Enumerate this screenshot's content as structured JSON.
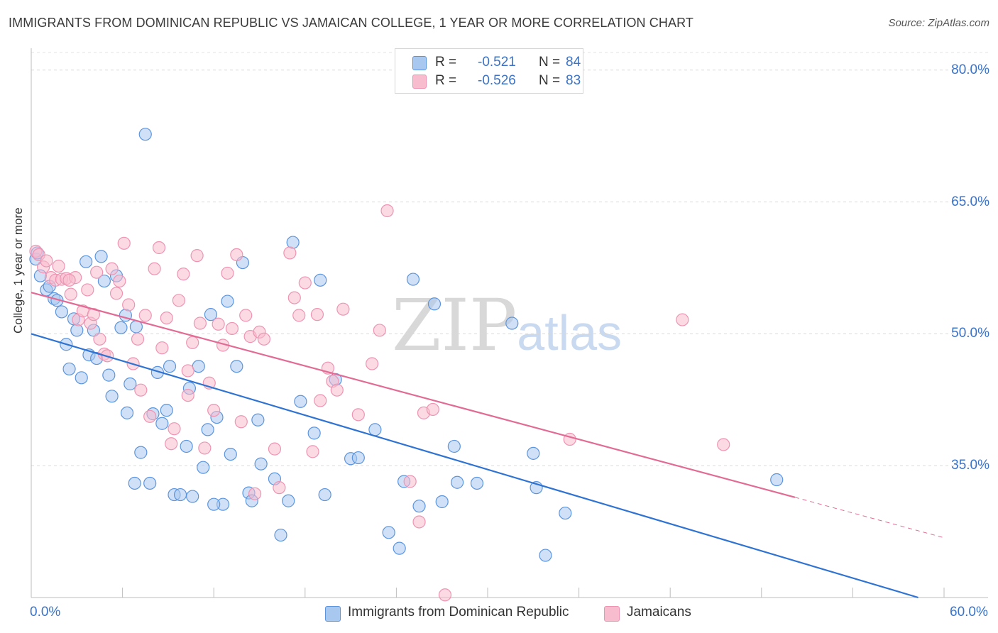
{
  "title": "IMMIGRANTS FROM DOMINICAN REPUBLIC VS JAMAICAN COLLEGE, 1 YEAR OR MORE CORRELATION CHART",
  "source": "Source: ZipAtlas.com",
  "watermark": {
    "zip": "ZIP",
    "atlas": "atlas"
  },
  "stats_legend": {
    "rows": [
      {
        "r_label": "R =",
        "r_value": "-0.521",
        "n_label": "N =",
        "n_value": "84",
        "color": "#a9c8f0"
      },
      {
        "r_label": "R =",
        "r_value": "-0.526",
        "n_label": "N =",
        "n_value": "83",
        "color": "#f7bccd"
      }
    ]
  },
  "bottom_legend": {
    "items": [
      {
        "label": "Immigrants from Dominican Republic",
        "color": "#a9c8f0"
      },
      {
        "label": "Jamaicans",
        "color": "#f7bccd"
      }
    ]
  },
  "chart_data": {
    "type": "scatter",
    "title": "IMMIGRANTS FROM DOMINICAN REPUBLIC VS JAMAICAN COLLEGE, 1 YEAR OR MORE CORRELATION CHART",
    "xlabel": "",
    "ylabel": "College, 1 year or more",
    "xlim": [
      0,
      60
    ],
    "ylim": [
      20,
      82
    ],
    "x_tick_labels": [
      "0.0%",
      "60.0%"
    ],
    "y_ticks": [
      35,
      50,
      65,
      80
    ],
    "y_tick_labels": [
      "35.0%",
      "50.0%",
      "65.0%",
      "80.0%"
    ],
    "grid": "horizontal dashed",
    "legend_placement": "bottom",
    "series": [
      {
        "name": "Immigrants from Dominican Republic",
        "color": "#5b95de",
        "fill": "#a9c8f0",
        "trend": {
          "x": [
            0,
            58.3
          ],
          "y": [
            50.0,
            20.0
          ],
          "color": "#2f73d2"
        },
        "points": [
          [
            0.3,
            58.5
          ],
          [
            0.4,
            59.2
          ],
          [
            0.6,
            56.6
          ],
          [
            1.0,
            55.0
          ],
          [
            1.2,
            55.4
          ],
          [
            1.5,
            54.0
          ],
          [
            1.7,
            53.8
          ],
          [
            2.0,
            52.5
          ],
          [
            2.3,
            48.8
          ],
          [
            2.5,
            46.0
          ],
          [
            2.8,
            51.7
          ],
          [
            3.0,
            50.4
          ],
          [
            3.3,
            45.0
          ],
          [
            3.6,
            58.2
          ],
          [
            3.8,
            47.6
          ],
          [
            4.1,
            50.4
          ],
          [
            4.3,
            47.2
          ],
          [
            4.6,
            58.8
          ],
          [
            4.8,
            56.0
          ],
          [
            5.1,
            45.3
          ],
          [
            5.3,
            42.9
          ],
          [
            5.6,
            56.6
          ],
          [
            5.9,
            50.7
          ],
          [
            6.2,
            52.1
          ],
          [
            6.3,
            41.0
          ],
          [
            6.5,
            44.3
          ],
          [
            6.9,
            50.8
          ],
          [
            7.2,
            36.5
          ],
          [
            7.5,
            72.7
          ],
          [
            7.8,
            33.0
          ],
          [
            8.0,
            40.9
          ],
          [
            8.3,
            45.6
          ],
          [
            8.6,
            39.8
          ],
          [
            8.9,
            41.3
          ],
          [
            9.1,
            46.3
          ],
          [
            9.4,
            31.7
          ],
          [
            9.8,
            31.7
          ],
          [
            10.2,
            37.2
          ],
          [
            10.4,
            43.8
          ],
          [
            10.6,
            31.5
          ],
          [
            11.0,
            46.3
          ],
          [
            11.3,
            34.8
          ],
          [
            11.6,
            39.1
          ],
          [
            11.8,
            52.2
          ],
          [
            12.2,
            40.5
          ],
          [
            12.6,
            30.6
          ],
          [
            12.9,
            53.7
          ],
          [
            13.1,
            36.3
          ],
          [
            13.5,
            46.3
          ],
          [
            13.9,
            58.1
          ],
          [
            14.3,
            31.9
          ],
          [
            14.5,
            31.0
          ],
          [
            14.9,
            40.2
          ],
          [
            15.1,
            35.2
          ],
          [
            16.0,
            33.5
          ],
          [
            16.4,
            27.1
          ],
          [
            16.9,
            31.0
          ],
          [
            17.2,
            60.4
          ],
          [
            17.7,
            42.3
          ],
          [
            18.6,
            38.7
          ],
          [
            19.0,
            56.1
          ],
          [
            19.3,
            31.7
          ],
          [
            20.0,
            44.8
          ],
          [
            21.0,
            35.8
          ],
          [
            21.5,
            35.9
          ],
          [
            22.6,
            39.1
          ],
          [
            23.5,
            27.4
          ],
          [
            24.2,
            25.6
          ],
          [
            24.5,
            33.2
          ],
          [
            25.1,
            56.2
          ],
          [
            25.5,
            30.4
          ],
          [
            26.5,
            53.4
          ],
          [
            27.0,
            30.9
          ],
          [
            27.8,
            37.2
          ],
          [
            28.0,
            33.1
          ],
          [
            29.3,
            33.0
          ],
          [
            31.6,
            51.2
          ],
          [
            33.0,
            36.4
          ],
          [
            33.2,
            32.5
          ],
          [
            33.8,
            24.8
          ],
          [
            35.1,
            29.6
          ],
          [
            49.0,
            33.4
          ],
          [
            6.8,
            33.0
          ],
          [
            12.0,
            30.6
          ]
        ]
      },
      {
        "name": "Jamaicans",
        "color": "#ee94b2",
        "fill": "#f7bccd",
        "trend": {
          "x": [
            0,
            50.2
          ],
          "y": [
            54.7,
            31.4
          ],
          "color": "#e26b95"
        },
        "trend_extension": {
          "x": [
            50.2,
            60
          ],
          "y": [
            31.4,
            26.8
          ]
        },
        "points": [
          [
            0.3,
            59.4
          ],
          [
            0.5,
            59.0
          ],
          [
            0.8,
            57.6
          ],
          [
            1.0,
            58.3
          ],
          [
            1.3,
            56.4
          ],
          [
            1.6,
            56.1
          ],
          [
            1.8,
            57.7
          ],
          [
            2.0,
            56.2
          ],
          [
            2.3,
            56.3
          ],
          [
            2.6,
            54.5
          ],
          [
            2.9,
            56.4
          ],
          [
            3.1,
            51.6
          ],
          [
            3.4,
            52.6
          ],
          [
            3.7,
            55.0
          ],
          [
            3.9,
            51.2
          ],
          [
            4.1,
            52.2
          ],
          [
            4.3,
            57.0
          ],
          [
            4.5,
            49.4
          ],
          [
            4.8,
            47.7
          ],
          [
            5.0,
            47.5
          ],
          [
            5.3,
            57.4
          ],
          [
            5.6,
            54.6
          ],
          [
            5.8,
            56.0
          ],
          [
            6.1,
            60.3
          ],
          [
            6.4,
            53.3
          ],
          [
            6.7,
            46.6
          ],
          [
            7.0,
            49.4
          ],
          [
            7.2,
            43.6
          ],
          [
            7.5,
            52.1
          ],
          [
            7.8,
            40.6
          ],
          [
            8.1,
            57.4
          ],
          [
            8.4,
            59.8
          ],
          [
            8.6,
            48.4
          ],
          [
            8.9,
            51.8
          ],
          [
            9.2,
            37.5
          ],
          [
            9.4,
            39.2
          ],
          [
            9.7,
            53.8
          ],
          [
            10.0,
            56.8
          ],
          [
            10.3,
            45.8
          ],
          [
            10.6,
            49.0
          ],
          [
            10.9,
            58.9
          ],
          [
            11.1,
            51.2
          ],
          [
            11.4,
            37.0
          ],
          [
            11.7,
            44.4
          ],
          [
            12.0,
            41.3
          ],
          [
            12.3,
            51.1
          ],
          [
            12.6,
            48.7
          ],
          [
            12.9,
            56.9
          ],
          [
            13.2,
            50.6
          ],
          [
            13.5,
            59.0
          ],
          [
            13.8,
            40.0
          ],
          [
            14.1,
            52.1
          ],
          [
            14.4,
            49.7
          ],
          [
            14.7,
            31.8
          ],
          [
            15.0,
            50.2
          ],
          [
            15.3,
            49.4
          ],
          [
            16.0,
            36.9
          ],
          [
            16.3,
            32.5
          ],
          [
            17.0,
            59.2
          ],
          [
            17.3,
            54.1
          ],
          [
            17.6,
            52.1
          ],
          [
            18.0,
            55.8
          ],
          [
            18.5,
            36.6
          ],
          [
            19.0,
            42.4
          ],
          [
            19.5,
            46.1
          ],
          [
            19.8,
            44.6
          ],
          [
            20.1,
            43.6
          ],
          [
            20.5,
            52.8
          ],
          [
            21.5,
            40.8
          ],
          [
            22.4,
            46.6
          ],
          [
            22.9,
            50.4
          ],
          [
            23.4,
            64.0
          ],
          [
            24.9,
            33.2
          ],
          [
            25.5,
            28.6
          ],
          [
            25.8,
            41.0
          ],
          [
            26.4,
            41.4
          ],
          [
            27.2,
            20.3
          ],
          [
            35.4,
            38.0
          ],
          [
            42.8,
            51.6
          ],
          [
            45.5,
            37.4
          ],
          [
            18.8,
            52.2
          ],
          [
            10.3,
            43.0
          ],
          [
            2.5,
            56.1
          ]
        ]
      }
    ]
  }
}
